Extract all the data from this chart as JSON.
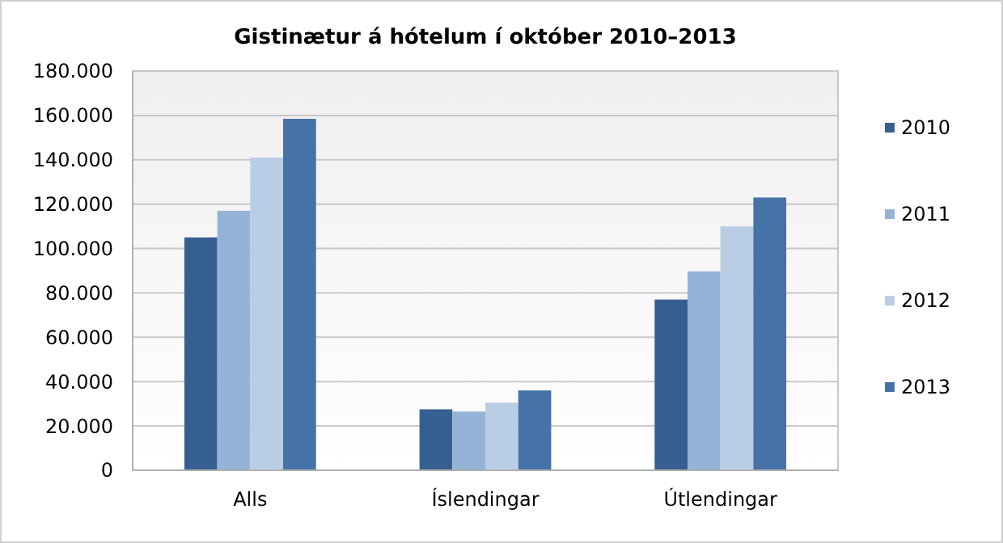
{
  "chart_data": {
    "type": "bar",
    "title": "Gistinætur á hótelum í október  2010–2013",
    "categories": [
      "Alls",
      "Íslendingar",
      "Útlendingar"
    ],
    "series": [
      {
        "name": "2010",
        "color": "#365f91",
        "values": [
          105000,
          27500,
          77000
        ]
      },
      {
        "name": "2011",
        "color": "#95b3d7",
        "values": [
          117000,
          26500,
          89700
        ]
      },
      {
        "name": "2012",
        "color": "#b9cde5",
        "values": [
          141000,
          30500,
          110000
        ]
      },
      {
        "name": "2013",
        "color": "#4573a7",
        "values": [
          158500,
          36000,
          123000
        ]
      }
    ],
    "ylim": [
      0,
      180000
    ],
    "yticks": [
      0,
      {
        "value": 20000,
        "label": "20.000"
      },
      {
        "value": 40000,
        "label": "40.000"
      },
      {
        "value": 60000,
        "label": "60.000"
      },
      {
        "value": 80000,
        "label": "80.000"
      },
      {
        "value": 100000,
        "label": "100.000"
      },
      {
        "value": 120000,
        "label": "120.000"
      },
      {
        "value": 140000,
        "label": "140.000"
      },
      {
        "value": 160000,
        "label": "160.000"
      },
      {
        "value": 180000,
        "label": "180.000"
      }
    ],
    "grid": "y",
    "legend": "right"
  }
}
